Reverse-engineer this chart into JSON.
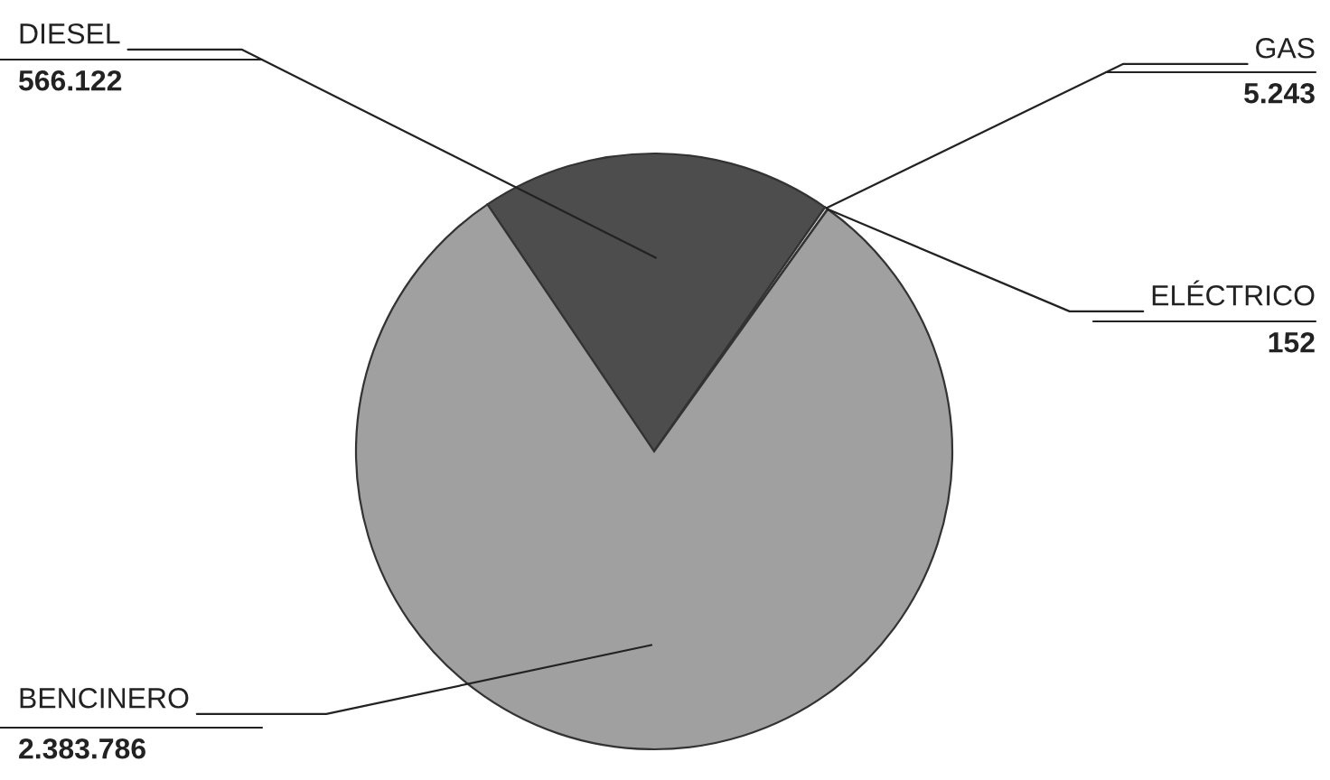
{
  "chart_data": {
    "type": "pie",
    "categories": [
      "DIESEL",
      "GAS",
      "ELÉCTRICO",
      "BENCINERO"
    ],
    "values": [
      566122,
      5243,
      152,
      2383786
    ],
    "value_labels": [
      "566.122",
      "5.243",
      "152",
      "2.383.786"
    ],
    "colors": [
      "#4d4d4d",
      "#d9d9d9",
      "#f2f2f2",
      "#a0a0a0"
    ],
    "legend": false
  }
}
